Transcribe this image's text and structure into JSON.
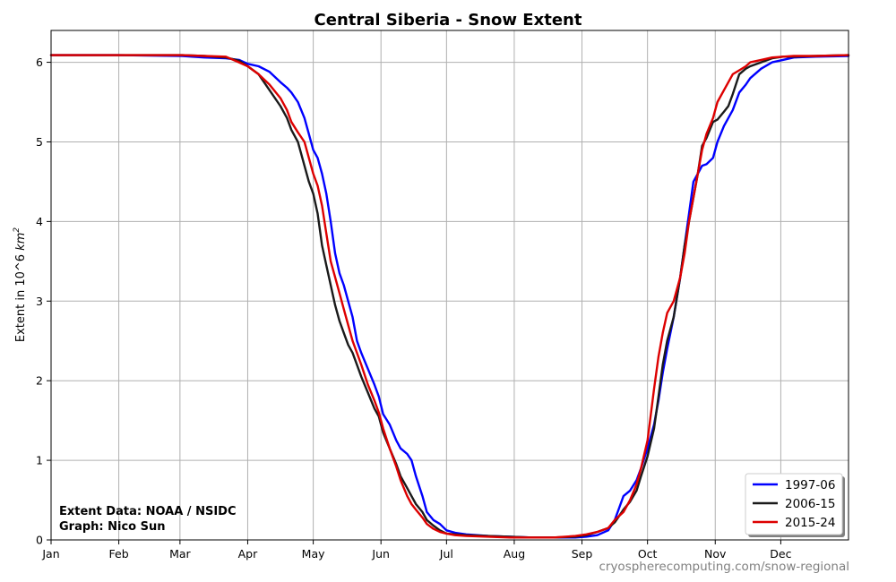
{
  "chart_data": {
    "type": "line",
    "title": "Central Siberia - Snow Extent",
    "xlabel": "",
    "ylabel": "Extent in 10^6 km²",
    "ylabel_parts": {
      "prefix": "Extent in 10^6 ",
      "unit": "km",
      "sup": "2"
    },
    "x_tick_labels": [
      "Jan",
      "Feb",
      "Mar",
      "Apr",
      "May",
      "Jun",
      "Jul",
      "Aug",
      "Sep",
      "Oct",
      "Nov",
      "Dec"
    ],
    "x_tick_days": [
      0,
      31,
      59,
      90,
      120,
      151,
      181,
      212,
      243,
      273,
      304,
      334
    ],
    "xlim": [
      0,
      365
    ],
    "ylim": [
      0,
      6.4
    ],
    "y_ticks": [
      0,
      1,
      2,
      3,
      4,
      5,
      6
    ],
    "grid": true,
    "legend_position": "bottom-right",
    "series": [
      {
        "name": "1997-06",
        "color": "#0000ff",
        "points": [
          [
            0,
            6.09
          ],
          [
            30,
            6.09
          ],
          [
            60,
            6.08
          ],
          [
            70,
            6.06
          ],
          [
            80,
            6.05
          ],
          [
            86,
            6.03
          ],
          [
            90,
            5.98
          ],
          [
            95,
            5.95
          ],
          [
            100,
            5.88
          ],
          [
            105,
            5.75
          ],
          [
            108,
            5.68
          ],
          [
            110,
            5.62
          ],
          [
            113,
            5.5
          ],
          [
            116,
            5.3
          ],
          [
            118,
            5.1
          ],
          [
            120,
            4.9
          ],
          [
            122,
            4.8
          ],
          [
            124,
            4.6
          ],
          [
            126,
            4.35
          ],
          [
            128,
            4.0
          ],
          [
            130,
            3.6
          ],
          [
            132,
            3.35
          ],
          [
            134,
            3.2
          ],
          [
            136,
            3.0
          ],
          [
            138,
            2.8
          ],
          [
            140,
            2.5
          ],
          [
            142,
            2.35
          ],
          [
            145,
            2.15
          ],
          [
            148,
            1.95
          ],
          [
            150,
            1.8
          ],
          [
            152,
            1.58
          ],
          [
            155,
            1.45
          ],
          [
            158,
            1.25
          ],
          [
            160,
            1.15
          ],
          [
            163,
            1.08
          ],
          [
            165,
            1.0
          ],
          [
            167,
            0.8
          ],
          [
            170,
            0.55
          ],
          [
            172,
            0.35
          ],
          [
            175,
            0.25
          ],
          [
            178,
            0.2
          ],
          [
            181,
            0.12
          ],
          [
            185,
            0.09
          ],
          [
            190,
            0.07
          ],
          [
            200,
            0.05
          ],
          [
            210,
            0.04
          ],
          [
            220,
            0.03
          ],
          [
            230,
            0.03
          ],
          [
            240,
            0.03
          ],
          [
            245,
            0.04
          ],
          [
            250,
            0.06
          ],
          [
            255,
            0.12
          ],
          [
            258,
            0.25
          ],
          [
            260,
            0.4
          ],
          [
            262,
            0.55
          ],
          [
            265,
            0.62
          ],
          [
            268,
            0.75
          ],
          [
            270,
            0.9
          ],
          [
            273,
            1.15
          ],
          [
            276,
            1.45
          ],
          [
            278,
            1.75
          ],
          [
            280,
            2.1
          ],
          [
            282,
            2.4
          ],
          [
            285,
            2.8
          ],
          [
            288,
            3.3
          ],
          [
            290,
            3.7
          ],
          [
            292,
            4.1
          ],
          [
            294,
            4.5
          ],
          [
            296,
            4.6
          ],
          [
            298,
            4.7
          ],
          [
            300,
            4.72
          ],
          [
            303,
            4.8
          ],
          [
            305,
            5.0
          ],
          [
            308,
            5.2
          ],
          [
            310,
            5.3
          ],
          [
            312,
            5.4
          ],
          [
            315,
            5.62
          ],
          [
            318,
            5.72
          ],
          [
            320,
            5.8
          ],
          [
            325,
            5.92
          ],
          [
            330,
            6.0
          ],
          [
            335,
            6.03
          ],
          [
            340,
            6.06
          ],
          [
            350,
            6.07
          ],
          [
            365,
            6.08
          ]
        ]
      },
      {
        "name": "2006-15",
        "color": "#1a1a1a",
        "points": [
          [
            0,
            6.09
          ],
          [
            30,
            6.09
          ],
          [
            60,
            6.09
          ],
          [
            70,
            6.08
          ],
          [
            80,
            6.06
          ],
          [
            86,
            6.02
          ],
          [
            90,
            5.95
          ],
          [
            95,
            5.85
          ],
          [
            100,
            5.65
          ],
          [
            105,
            5.45
          ],
          [
            108,
            5.3
          ],
          [
            110,
            5.15
          ],
          [
            113,
            5.0
          ],
          [
            116,
            4.7
          ],
          [
            118,
            4.5
          ],
          [
            120,
            4.35
          ],
          [
            122,
            4.1
          ],
          [
            124,
            3.7
          ],
          [
            126,
            3.45
          ],
          [
            128,
            3.2
          ],
          [
            130,
            2.95
          ],
          [
            132,
            2.75
          ],
          [
            134,
            2.6
          ],
          [
            136,
            2.45
          ],
          [
            138,
            2.35
          ],
          [
            140,
            2.2
          ],
          [
            142,
            2.05
          ],
          [
            145,
            1.85
          ],
          [
            148,
            1.65
          ],
          [
            150,
            1.55
          ],
          [
            152,
            1.35
          ],
          [
            155,
            1.15
          ],
          [
            158,
            0.95
          ],
          [
            160,
            0.8
          ],
          [
            163,
            0.65
          ],
          [
            165,
            0.55
          ],
          [
            167,
            0.45
          ],
          [
            170,
            0.35
          ],
          [
            172,
            0.25
          ],
          [
            175,
            0.18
          ],
          [
            178,
            0.12
          ],
          [
            181,
            0.08
          ],
          [
            185,
            0.07
          ],
          [
            190,
            0.06
          ],
          [
            200,
            0.05
          ],
          [
            210,
            0.04
          ],
          [
            220,
            0.03
          ],
          [
            230,
            0.03
          ],
          [
            240,
            0.04
          ],
          [
            245,
            0.06
          ],
          [
            250,
            0.1
          ],
          [
            255,
            0.15
          ],
          [
            258,
            0.22
          ],
          [
            260,
            0.3
          ],
          [
            262,
            0.38
          ],
          [
            265,
            0.48
          ],
          [
            268,
            0.62
          ],
          [
            270,
            0.8
          ],
          [
            273,
            1.05
          ],
          [
            276,
            1.4
          ],
          [
            278,
            1.8
          ],
          [
            280,
            2.2
          ],
          [
            282,
            2.5
          ],
          [
            285,
            2.8
          ],
          [
            288,
            3.3
          ],
          [
            290,
            3.7
          ],
          [
            292,
            4.0
          ],
          [
            294,
            4.3
          ],
          [
            296,
            4.6
          ],
          [
            298,
            4.95
          ],
          [
            300,
            5.05
          ],
          [
            303,
            5.25
          ],
          [
            305,
            5.28
          ],
          [
            308,
            5.38
          ],
          [
            310,
            5.45
          ],
          [
            312,
            5.6
          ],
          [
            315,
            5.85
          ],
          [
            318,
            5.92
          ],
          [
            320,
            5.95
          ],
          [
            325,
            6.0
          ],
          [
            330,
            6.05
          ],
          [
            335,
            6.07
          ],
          [
            340,
            6.07
          ],
          [
            350,
            6.08
          ],
          [
            365,
            6.09
          ]
        ]
      },
      {
        "name": "2015-24",
        "color": "#dd0000",
        "points": [
          [
            0,
            6.09
          ],
          [
            30,
            6.09
          ],
          [
            60,
            6.09
          ],
          [
            70,
            6.08
          ],
          [
            80,
            6.07
          ],
          [
            86,
            6.0
          ],
          [
            90,
            5.95
          ],
          [
            95,
            5.85
          ],
          [
            100,
            5.72
          ],
          [
            105,
            5.55
          ],
          [
            108,
            5.4
          ],
          [
            110,
            5.25
          ],
          [
            113,
            5.12
          ],
          [
            116,
            5.0
          ],
          [
            118,
            4.8
          ],
          [
            120,
            4.6
          ],
          [
            122,
            4.45
          ],
          [
            124,
            4.2
          ],
          [
            126,
            3.85
          ],
          [
            128,
            3.5
          ],
          [
            130,
            3.3
          ],
          [
            132,
            3.1
          ],
          [
            134,
            2.9
          ],
          [
            136,
            2.7
          ],
          [
            138,
            2.5
          ],
          [
            140,
            2.35
          ],
          [
            142,
            2.2
          ],
          [
            145,
            1.95
          ],
          [
            148,
            1.75
          ],
          [
            150,
            1.6
          ],
          [
            152,
            1.4
          ],
          [
            155,
            1.15
          ],
          [
            158,
            0.92
          ],
          [
            160,
            0.75
          ],
          [
            163,
            0.55
          ],
          [
            165,
            0.45
          ],
          [
            167,
            0.38
          ],
          [
            170,
            0.28
          ],
          [
            172,
            0.2
          ],
          [
            175,
            0.14
          ],
          [
            178,
            0.1
          ],
          [
            181,
            0.08
          ],
          [
            185,
            0.06
          ],
          [
            190,
            0.05
          ],
          [
            200,
            0.04
          ],
          [
            210,
            0.03
          ],
          [
            220,
            0.03
          ],
          [
            230,
            0.03
          ],
          [
            240,
            0.05
          ],
          [
            245,
            0.07
          ],
          [
            250,
            0.1
          ],
          [
            255,
            0.15
          ],
          [
            258,
            0.25
          ],
          [
            260,
            0.3
          ],
          [
            262,
            0.35
          ],
          [
            265,
            0.5
          ],
          [
            268,
            0.7
          ],
          [
            270,
            0.9
          ],
          [
            273,
            1.25
          ],
          [
            276,
            1.9
          ],
          [
            278,
            2.3
          ],
          [
            280,
            2.6
          ],
          [
            282,
            2.85
          ],
          [
            285,
            3.0
          ],
          [
            288,
            3.3
          ],
          [
            290,
            3.6
          ],
          [
            292,
            4.0
          ],
          [
            294,
            4.3
          ],
          [
            296,
            4.6
          ],
          [
            298,
            4.9
          ],
          [
            300,
            5.1
          ],
          [
            303,
            5.3
          ],
          [
            305,
            5.5
          ],
          [
            308,
            5.65
          ],
          [
            310,
            5.75
          ],
          [
            312,
            5.85
          ],
          [
            315,
            5.9
          ],
          [
            318,
            5.95
          ],
          [
            320,
            6.0
          ],
          [
            325,
            6.03
          ],
          [
            330,
            6.06
          ],
          [
            335,
            6.07
          ],
          [
            340,
            6.08
          ],
          [
            350,
            6.08
          ],
          [
            365,
            6.09
          ]
        ]
      }
    ],
    "annotations": {
      "credit_line1": "Extent Data: NOAA / NSIDC",
      "credit_line2": "Graph: Nico Sun",
      "source": "cryospherecomputing.com/snow-regional"
    }
  }
}
